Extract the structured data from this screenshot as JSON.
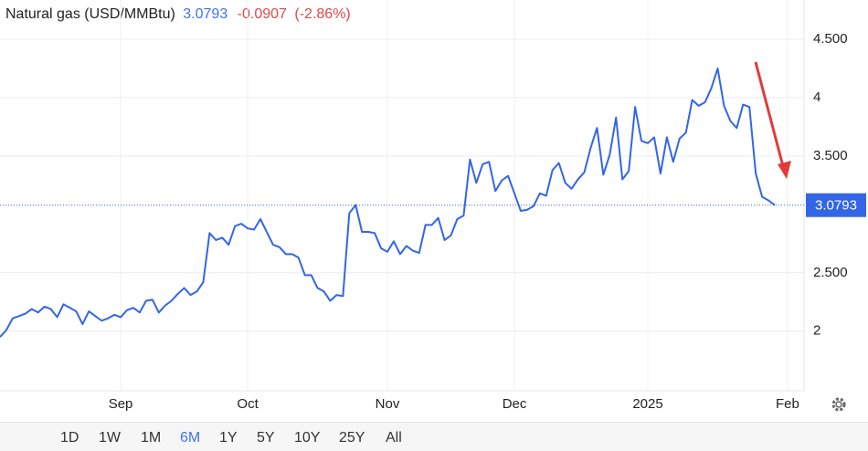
{
  "chart_data": {
    "type": "line",
    "title": "Natural gas (USD/MMBtu)",
    "last_price": 3.0793,
    "change": -0.0907,
    "change_pct": {
      "value": -2.86,
      "label": "(-2.86%)"
    },
    "series": [
      {
        "name": "Natural gas",
        "color": "#3366e6",
        "values": [
          1.95,
          2.01,
          2.11,
          2.13,
          2.15,
          2.19,
          2.16,
          2.21,
          2.19,
          2.12,
          2.23,
          2.2,
          2.17,
          2.06,
          2.17,
          2.13,
          2.09,
          2.11,
          2.14,
          2.12,
          2.18,
          2.2,
          2.16,
          2.26,
          2.27,
          2.16,
          2.22,
          2.26,
          2.32,
          2.37,
          2.31,
          2.34,
          2.42,
          2.84,
          2.78,
          2.8,
          2.74,
          2.9,
          2.92,
          2.88,
          2.87,
          2.96,
          2.85,
          2.74,
          2.72,
          2.66,
          2.66,
          2.63,
          2.48,
          2.48,
          2.37,
          2.34,
          2.26,
          2.31,
          2.3,
          3.01,
          3.08,
          2.85,
          2.85,
          2.84,
          2.71,
          2.68,
          2.77,
          2.66,
          2.73,
          2.69,
          2.67,
          2.91,
          2.91,
          2.97,
          2.78,
          2.82,
          2.96,
          2.99,
          3.47,
          3.27,
          3.43,
          3.45,
          3.2,
          3.29,
          3.33,
          3.18,
          3.03,
          3.04,
          3.07,
          3.18,
          3.16,
          3.38,
          3.44,
          3.27,
          3.22,
          3.3,
          3.36,
          3.57,
          3.74,
          3.34,
          3.51,
          3.83,
          3.3,
          3.37,
          3.92,
          3.63,
          3.61,
          3.66,
          3.35,
          3.66,
          3.45,
          3.65,
          3.7,
          3.98,
          3.93,
          3.96,
          4.08,
          4.25,
          3.93,
          3.8,
          3.74,
          3.94,
          3.92,
          3.35,
          3.15,
          3.12,
          3.0793
        ]
      }
    ],
    "xlim": [
      0,
      126.6
    ],
    "xticks": [
      {
        "value": 19,
        "label": "Sep"
      },
      {
        "value": 39,
        "label": "Oct"
      },
      {
        "value": 61,
        "label": "Nov"
      },
      {
        "value": 81,
        "label": "Dec"
      },
      {
        "value": 102,
        "label": "2025"
      },
      {
        "value": 124,
        "label": "Feb"
      }
    ],
    "ylim": [
      1.49,
      4.836
    ],
    "yticks": [
      2,
      {
        "value": 2.5,
        "label": "2.500"
      },
      {
        "value": 3.5,
        "label": "3.500"
      },
      4,
      {
        "value": 4.5,
        "label": "4.500"
      }
    ],
    "grid": true,
    "ranges": [
      "1D",
      "1W",
      "1M",
      "6M",
      "1Y",
      "5Y",
      "10Y",
      "25Y",
      "All"
    ],
    "active_range": "6M"
  }
}
